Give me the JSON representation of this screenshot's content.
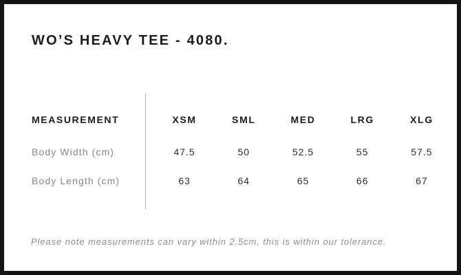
{
  "page": {
    "title": "WO’S HEAVY TEE - 4080."
  },
  "size_chart": {
    "measurement_header": "MEASUREMENT",
    "sizes": [
      "XSM",
      "SML",
      "MED",
      "LRG",
      "XLG"
    ],
    "rows": [
      {
        "label": "Body Width (cm)",
        "values": [
          "47.5",
          "50",
          "52.5",
          "55",
          "57.5"
        ]
      },
      {
        "label": "Body Length (cm)",
        "values": [
          "63",
          "64",
          "65",
          "66",
          "67"
        ]
      }
    ]
  },
  "footer": {
    "note": "Please note measurements can vary within 2.5cm, this is within our tolerance."
  },
  "colors": {
    "frame_border": "#141414",
    "heading_text": "#1b1b1b",
    "value_text": "#2e2e2e",
    "muted_text": "#878787",
    "divider": "#b5b5b5",
    "background": "#ffffff"
  }
}
